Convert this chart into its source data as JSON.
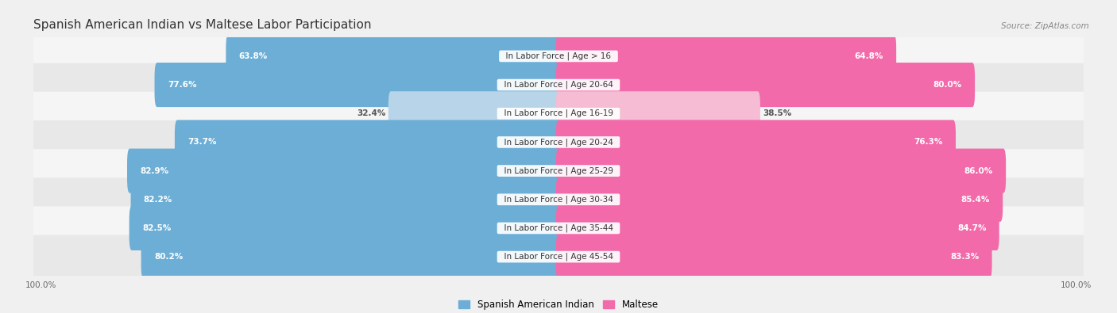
{
  "title": "Spanish American Indian vs Maltese Labor Participation",
  "source": "Source: ZipAtlas.com",
  "categories": [
    "In Labor Force | Age > 16",
    "In Labor Force | Age 20-64",
    "In Labor Force | Age 16-19",
    "In Labor Force | Age 20-24",
    "In Labor Force | Age 25-29",
    "In Labor Force | Age 30-34",
    "In Labor Force | Age 35-44",
    "In Labor Force | Age 45-54"
  ],
  "spanish_values": [
    63.8,
    77.6,
    32.4,
    73.7,
    82.9,
    82.2,
    82.5,
    80.2
  ],
  "maltese_values": [
    64.8,
    80.0,
    38.5,
    76.3,
    86.0,
    85.4,
    84.7,
    83.3
  ],
  "spanish_color": "#6daed6",
  "maltese_color": "#f26aaa",
  "spanish_color_light": "#b8d4e8",
  "maltese_color_light": "#f5bcd4",
  "bg_color": "#f0f0f0",
  "row_bg_light": "#f5f5f5",
  "row_bg_dark": "#e8e8e8",
  "max_val": 100.0,
  "bar_height": 0.55,
  "title_fontsize": 11,
  "label_fontsize": 7.5,
  "value_fontsize": 7.5,
  "legend_fontsize": 8.5,
  "axis_label_fontsize": 7.5
}
